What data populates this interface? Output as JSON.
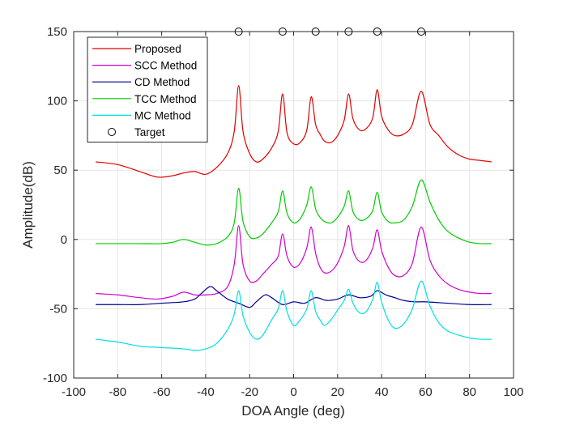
{
  "chart_data": {
    "type": "line",
    "title": "",
    "xlabel": "DOA Angle (deg)",
    "ylabel": "Amplitude(dB)",
    "xlim": [
      -100,
      100
    ],
    "ylim": [
      -100,
      150
    ],
    "xticks": [
      -100,
      -80,
      -60,
      -40,
      -20,
      0,
      20,
      40,
      60,
      80,
      100
    ],
    "yticks": [
      -100,
      -50,
      0,
      50,
      100,
      150
    ],
    "grid": true,
    "legend_position": "top-left",
    "series": [
      {
        "name": "Proposed",
        "color": "#e00000",
        "x": [
          -90,
          -80,
          -70,
          -62,
          -55,
          -50,
          -45,
          -40,
          -35,
          -30,
          -27,
          -25,
          -23,
          -20,
          -17,
          -14,
          -10,
          -7,
          -5,
          -3,
          0,
          3,
          6,
          8,
          10,
          12,
          14,
          17,
          20,
          23,
          25,
          27,
          30,
          33,
          36,
          38,
          40,
          43,
          46,
          50,
          54,
          58,
          62,
          66,
          70,
          75,
          80,
          85,
          90
        ],
        "values": [
          56,
          54,
          49,
          45,
          46,
          48,
          49,
          47,
          52,
          62,
          78,
          111,
          78,
          62,
          56,
          58,
          66,
          78,
          105,
          77,
          69,
          70,
          79,
          103,
          83,
          76,
          71,
          70,
          75,
          86,
          105,
          87,
          79,
          80,
          88,
          108,
          89,
          79,
          75,
          76,
          83,
          107,
          83,
          75,
          67,
          61,
          58,
          57,
          56
        ]
      },
      {
        "name": "SCC Method",
        "color": "#d000d0",
        "x": [
          -90,
          -80,
          -70,
          -62,
          -55,
          -50,
          -45,
          -40,
          -35,
          -30,
          -27,
          -25,
          -23,
          -20,
          -17,
          -14,
          -10,
          -7,
          -5,
          -3,
          0,
          3,
          6,
          8,
          10,
          12,
          14,
          17,
          20,
          23,
          25,
          27,
          30,
          33,
          36,
          38,
          40,
          43,
          46,
          50,
          54,
          58,
          62,
          66,
          70,
          75,
          80,
          85,
          90
        ],
        "values": [
          -39,
          -40,
          -42,
          -43,
          -41,
          -38,
          -40,
          -40,
          -39,
          -34,
          -18,
          10,
          -18,
          -30,
          -30,
          -25,
          -18,
          -12,
          4,
          -12,
          -20,
          -17,
          -6,
          9,
          -10,
          -20,
          -24,
          -23,
          -17,
          -5,
          10,
          -8,
          -16,
          -15,
          -6,
          7,
          -8,
          -20,
          -26,
          -26,
          -17,
          9,
          -15,
          -26,
          -32,
          -36,
          -38,
          -39,
          -39
        ]
      },
      {
        "name": "CD Method",
        "color": "#000090",
        "x": [
          -90,
          -80,
          -70,
          -60,
          -50,
          -45,
          -42,
          -38,
          -35,
          -30,
          -25,
          -20,
          -17,
          -13,
          -10,
          -5,
          0,
          5,
          10,
          15,
          20,
          25,
          30,
          35,
          38,
          42,
          46,
          50,
          55,
          60,
          70,
          80,
          90
        ],
        "values": [
          -47,
          -47,
          -47,
          -46,
          -45,
          -43,
          -39,
          -34,
          -37,
          -43,
          -46,
          -49,
          -45,
          -40,
          -42,
          -47,
          -45,
          -46,
          -42,
          -44,
          -43,
          -40,
          -42,
          -41,
          -37,
          -40,
          -42,
          -44,
          -45,
          -45,
          -46,
          -47,
          -47
        ]
      },
      {
        "name": "TCC Method",
        "color": "#00cc00",
        "x": [
          -90,
          -80,
          -70,
          -60,
          -55,
          -50,
          -45,
          -40,
          -35,
          -30,
          -27,
          -25,
          -23,
          -20,
          -17,
          -14,
          -10,
          -7,
          -5,
          -3,
          0,
          3,
          6,
          8,
          10,
          12,
          14,
          17,
          20,
          23,
          25,
          27,
          30,
          33,
          36,
          38,
          40,
          43,
          46,
          50,
          54,
          58,
          62,
          66,
          70,
          75,
          80,
          85,
          90
        ],
        "values": [
          -3,
          -3,
          -3,
          -3,
          -2,
          0,
          -2,
          -4,
          -3,
          2,
          12,
          37,
          13,
          2,
          1,
          4,
          12,
          20,
          35,
          19,
          12,
          15,
          25,
          38,
          22,
          16,
          13,
          12,
          16,
          24,
          35,
          20,
          14,
          15,
          21,
          34,
          20,
          13,
          12,
          14,
          24,
          43,
          27,
          14,
          6,
          1,
          -2,
          -3,
          -3
        ]
      },
      {
        "name": "MC Method",
        "color": "#00e0e0",
        "x": [
          -90,
          -80,
          -70,
          -60,
          -50,
          -45,
          -40,
          -35,
          -30,
          -27,
          -25,
          -23,
          -20,
          -17,
          -14,
          -10,
          -7,
          -5,
          -3,
          0,
          3,
          6,
          8,
          10,
          12,
          14,
          17,
          20,
          23,
          25,
          27,
          30,
          33,
          36,
          38,
          40,
          43,
          46,
          50,
          54,
          58,
          62,
          66,
          70,
          75,
          80,
          85,
          90
        ],
        "values": [
          -72,
          -74,
          -77,
          -78,
          -79,
          -80,
          -79,
          -75,
          -65,
          -54,
          -37,
          -55,
          -67,
          -72,
          -69,
          -58,
          -50,
          -37,
          -52,
          -62,
          -58,
          -50,
          -37,
          -52,
          -58,
          -62,
          -58,
          -51,
          -44,
          -36,
          -46,
          -53,
          -52,
          -43,
          -31,
          -45,
          -58,
          -64,
          -61,
          -50,
          -30,
          -48,
          -60,
          -66,
          -69,
          -71,
          -72,
          -72
        ]
      }
    ],
    "target": {
      "name": "Target",
      "x": [
        -25,
        -5,
        10,
        25,
        38,
        58
      ],
      "values": [
        150,
        150,
        150,
        150,
        150,
        150
      ]
    }
  }
}
